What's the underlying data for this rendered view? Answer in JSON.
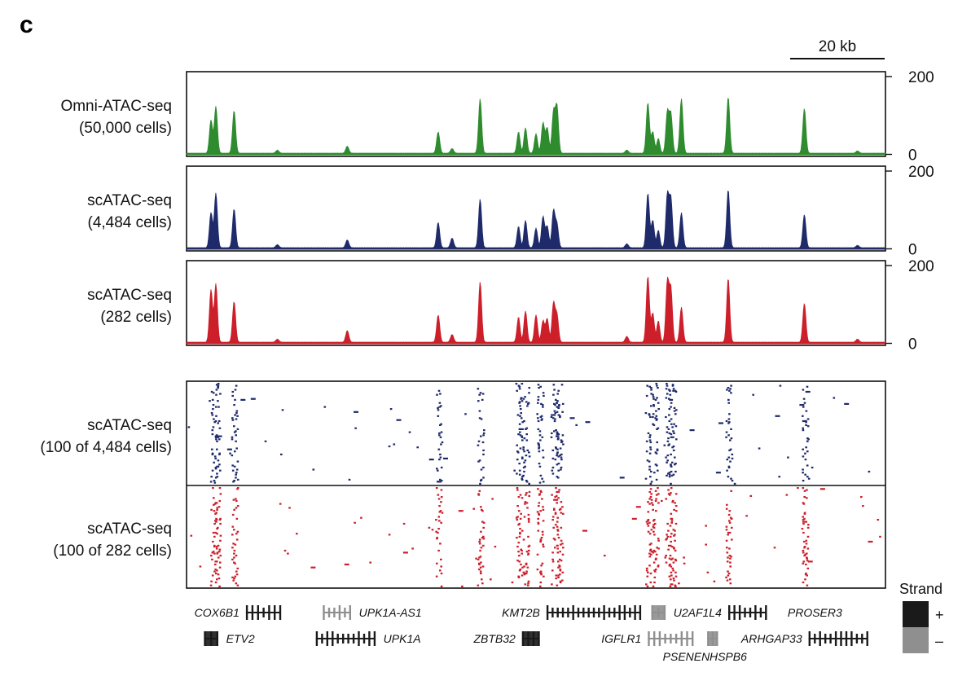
{
  "panel_label": "c",
  "chart_data": {
    "type": "genome-browser",
    "scale_bar": {
      "label": "20 kb",
      "kb": 20
    },
    "x_domain": [
      0,
      100
    ],
    "tracks": [
      {
        "key": "omni",
        "label": [
          "Omni-ATAC-seq",
          "(50,000 cells)"
        ],
        "color": "#2e8b2e",
        "ylim": [
          0,
          200
        ],
        "yticks": [
          "200",
          "0"
        ],
        "peaks": [
          [
            3.5,
            85
          ],
          [
            4.2,
            120
          ],
          [
            6.8,
            110
          ],
          [
            23,
            18
          ],
          [
            36,
            55
          ],
          [
            38,
            12
          ],
          [
            42,
            140
          ],
          [
            47.5,
            55
          ],
          [
            48.5,
            65
          ],
          [
            50,
            50
          ],
          [
            51,
            78
          ],
          [
            51.6,
            65
          ],
          [
            52.5,
            105
          ],
          [
            53,
            120
          ],
          [
            66,
            130
          ],
          [
            66.7,
            55
          ],
          [
            67.5,
            38
          ],
          [
            68.8,
            105
          ],
          [
            69.3,
            100
          ],
          [
            70.8,
            140
          ],
          [
            77.5,
            145
          ],
          [
            88.4,
            115
          ],
          [
            13,
            8
          ],
          [
            63,
            8
          ],
          [
            96,
            6
          ]
        ]
      },
      {
        "key": "sc4484",
        "label": [
          "scATAC-seq",
          "(4,484 cells)"
        ],
        "color": "#1f2a6b",
        "ylim": [
          0,
          200
        ],
        "yticks": [
          "200",
          "0"
        ],
        "peaks": [
          [
            3.5,
            90
          ],
          [
            4.2,
            140
          ],
          [
            6.8,
            100
          ],
          [
            23,
            20
          ],
          [
            36,
            65
          ],
          [
            38,
            25
          ],
          [
            42,
            125
          ],
          [
            47.5,
            55
          ],
          [
            48.5,
            70
          ],
          [
            50,
            50
          ],
          [
            51,
            80
          ],
          [
            51.6,
            55
          ],
          [
            52.5,
            95
          ],
          [
            53,
            60
          ],
          [
            66,
            140
          ],
          [
            66.7,
            70
          ],
          [
            67.5,
            45
          ],
          [
            68.8,
            135
          ],
          [
            69.3,
            125
          ],
          [
            70.8,
            90
          ],
          [
            77.5,
            150
          ],
          [
            88.4,
            85
          ],
          [
            13,
            8
          ],
          [
            63,
            10
          ],
          [
            96,
            6
          ]
        ]
      },
      {
        "key": "sc282",
        "label": [
          "scATAC-seq",
          "(282 cells)"
        ],
        "color": "#cc1f2a",
        "ylim": [
          0,
          200
        ],
        "yticks": [
          "200",
          "0"
        ],
        "peaks": [
          [
            3.5,
            135
          ],
          [
            4.2,
            150
          ],
          [
            6.8,
            105
          ],
          [
            23,
            30
          ],
          [
            36,
            70
          ],
          [
            38,
            20
          ],
          [
            42,
            155
          ],
          [
            47.5,
            65
          ],
          [
            48.5,
            80
          ],
          [
            50,
            70
          ],
          [
            51,
            55
          ],
          [
            51.6,
            60
          ],
          [
            52.5,
            100
          ],
          [
            53,
            70
          ],
          [
            66,
            170
          ],
          [
            66.7,
            75
          ],
          [
            67.5,
            55
          ],
          [
            68.8,
            155
          ],
          [
            69.3,
            135
          ],
          [
            70.8,
            90
          ],
          [
            77.5,
            165
          ],
          [
            88.4,
            100
          ],
          [
            13,
            8
          ],
          [
            63,
            15
          ],
          [
            96,
            8
          ]
        ]
      }
    ],
    "raster": {
      "groups": [
        {
          "key": "r4484",
          "label": [
            "scATAC-seq",
            "(100 of 4,484 cells)"
          ],
          "color": "#1f2a6b",
          "cells": 100
        },
        {
          "key": "r282",
          "label": [
            "scATAC-seq",
            "(100 of 282 cells)"
          ],
          "color": "#cc1f2a",
          "cells": 100
        }
      ],
      "hotspots": [
        3.8,
        4.3,
        6.8,
        36,
        42,
        47.5,
        48.5,
        50.5,
        52.5,
        53.3,
        66,
        67,
        68.8,
        69.5,
        77.5,
        88.4
      ]
    },
    "genes": [
      {
        "name": "COX6B1",
        "row": 0,
        "start": 8.5,
        "end": 13.5,
        "strand": "+",
        "label_side": "left"
      },
      {
        "name": "UPK1A-AS1",
        "row": 0,
        "start": 19.5,
        "end": 23.5,
        "strand": "-",
        "label_side": "right"
      },
      {
        "name": "KMT2B",
        "row": 0,
        "start": 51.5,
        "end": 65,
        "strand": "+",
        "label_side": "left"
      },
      {
        "name": "U2AF1L4",
        "row": 0,
        "start": 66.5,
        "end": 68.5,
        "strand": "-",
        "label_side": "right"
      },
      {
        "name": "",
        "row": 0,
        "start": 77.5,
        "end": 83,
        "strand": "+",
        "label_side": "none"
      },
      {
        "name": "PROSER3",
        "row": 0,
        "start": 86,
        "end": 86,
        "strand": "+",
        "label_side": "right",
        "text_only": true
      },
      {
        "name": "ETV2",
        "row": 1,
        "start": 2.5,
        "end": 4.5,
        "strand": "+",
        "label_side": "right"
      },
      {
        "name": "UPK1A",
        "row": 1,
        "start": 18.5,
        "end": 27,
        "strand": "+",
        "label_side": "right"
      },
      {
        "name": "ZBTB32",
        "row": 1,
        "start": 48,
        "end": 50.5,
        "strand": "+",
        "label_side": "left"
      },
      {
        "name": "IGFLR1",
        "row": 1,
        "start": 66,
        "end": 72.5,
        "strand": "-",
        "label_side": "left"
      },
      {
        "name": "HSPB6",
        "row": 1,
        "start": 74.5,
        "end": 76,
        "strand": "-",
        "label_side": "none"
      },
      {
        "name": "ARHGAP33",
        "row": 1,
        "start": 89,
        "end": 97.5,
        "strand": "+",
        "label_side": "left"
      }
    ],
    "gene_sub_labels": [
      {
        "name": "PSENEN",
        "x": 71.5
      },
      {
        "name": "HSPB6",
        "x": 77.5
      }
    ],
    "legend": {
      "title": "Strand",
      "entries": [
        {
          "label": "+",
          "color": "#1a1a1a"
        },
        {
          "label": "–",
          "color": "#8f8f8f"
        }
      ]
    }
  }
}
